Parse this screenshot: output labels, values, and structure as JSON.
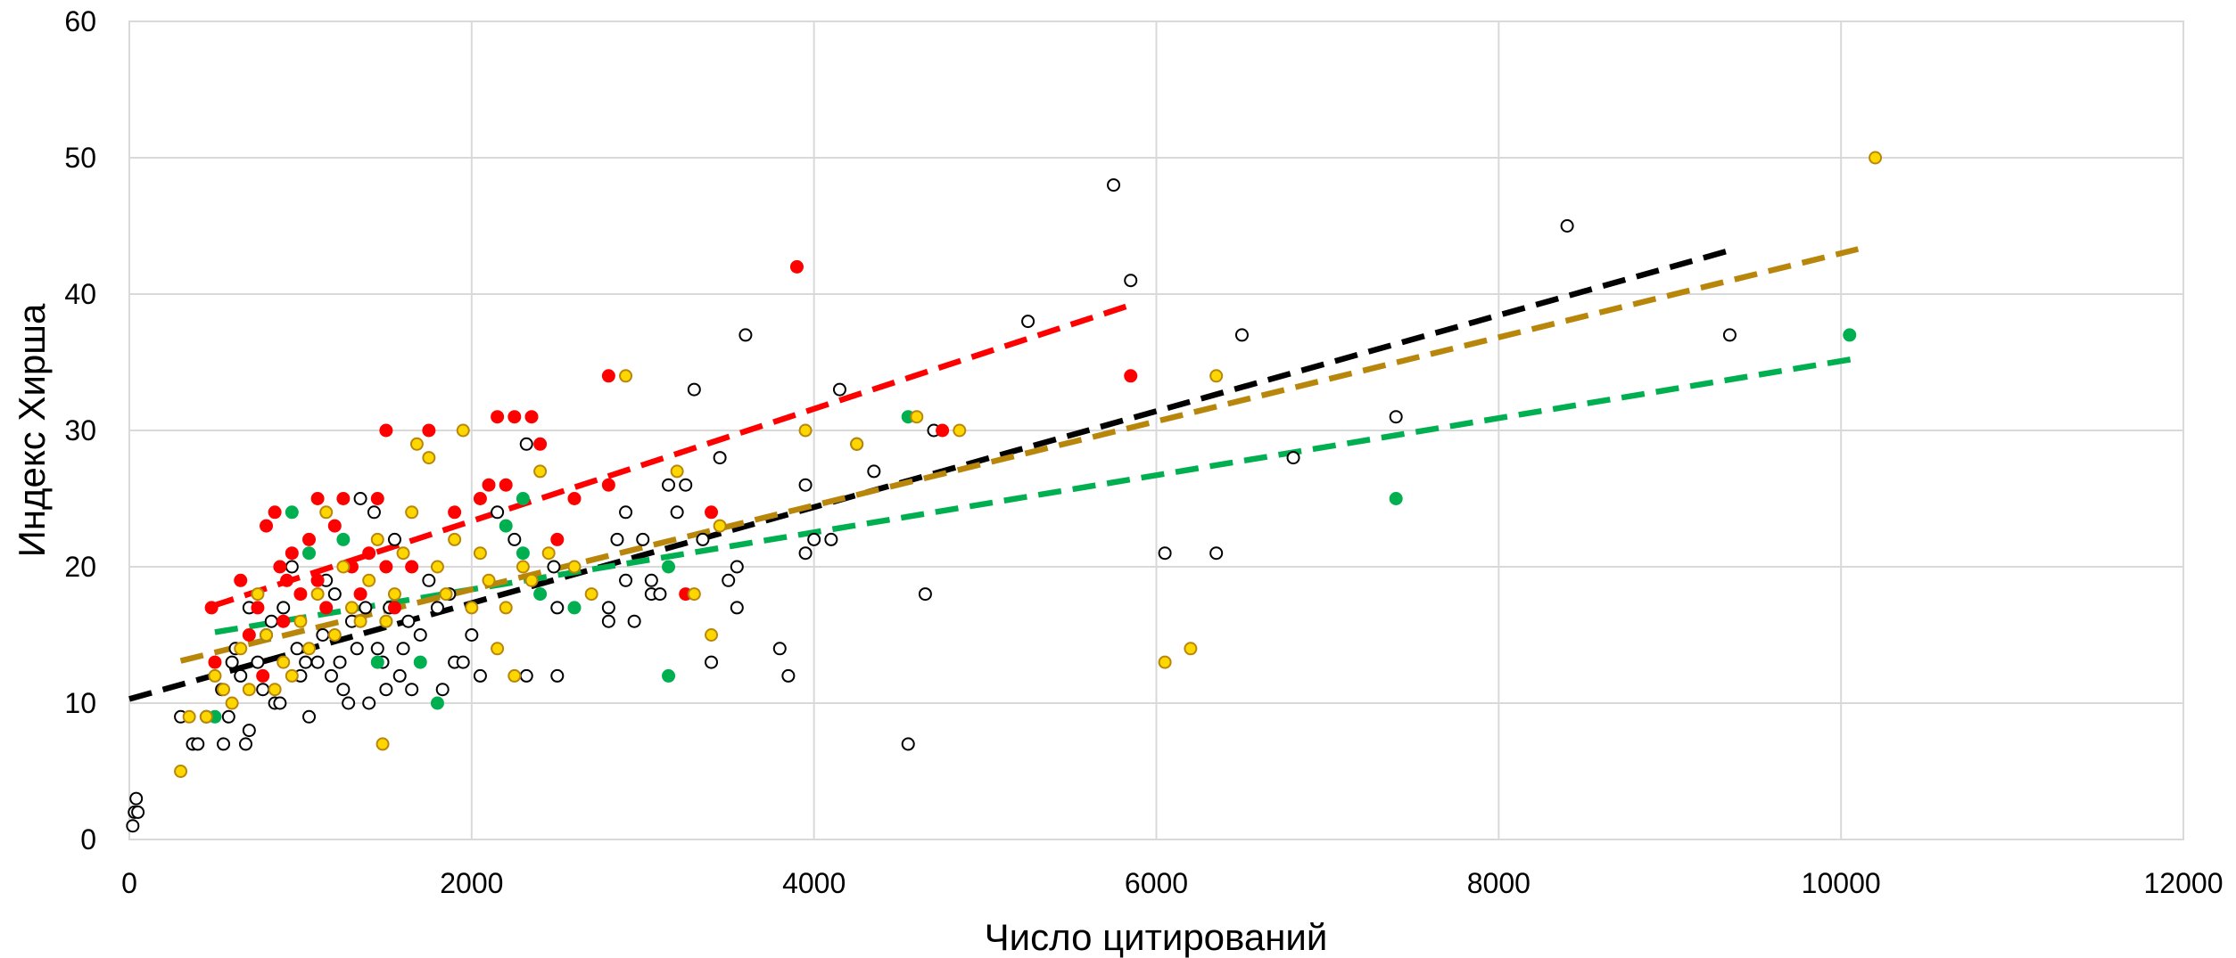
{
  "chart_data": {
    "type": "scatter",
    "title": "",
    "xlabel": "Число цитирований",
    "ylabel": "Индекс Хирша",
    "xlim": [
      0,
      12000
    ],
    "ylim": [
      0,
      60
    ],
    "xticks": [
      0,
      2000,
      4000,
      6000,
      8000,
      10000,
      12000
    ],
    "yticks": [
      0,
      10,
      20,
      30,
      40,
      50,
      60
    ],
    "xtick_labels": [
      "0",
      "2000",
      "4000",
      "6000",
      "8000",
      "10000",
      "12000"
    ],
    "ytick_labels": [
      "0",
      "10",
      "20",
      "30",
      "40",
      "50",
      "60"
    ],
    "grid": true,
    "legend": "none",
    "series": [
      {
        "color": "#ffffff",
        "stroke": "#000000",
        "points": [
          [
            20,
            1
          ],
          [
            30,
            2
          ],
          [
            50,
            2
          ],
          [
            40,
            3
          ],
          [
            300,
            9
          ],
          [
            370,
            7
          ],
          [
            400,
            7
          ],
          [
            450,
            9
          ],
          [
            540,
            11
          ],
          [
            550,
            7
          ],
          [
            580,
            9
          ],
          [
            600,
            13
          ],
          [
            620,
            14
          ],
          [
            650,
            12
          ],
          [
            680,
            7
          ],
          [
            700,
            8
          ],
          [
            700,
            17
          ],
          [
            750,
            13
          ],
          [
            780,
            11
          ],
          [
            800,
            15
          ],
          [
            830,
            16
          ],
          [
            850,
            10
          ],
          [
            880,
            10
          ],
          [
            900,
            17
          ],
          [
            950,
            20
          ],
          [
            980,
            14
          ],
          [
            1000,
            12
          ],
          [
            1030,
            13
          ],
          [
            1050,
            9
          ],
          [
            1100,
            13
          ],
          [
            1130,
            15
          ],
          [
            1150,
            19
          ],
          [
            1180,
            12
          ],
          [
            1200,
            18
          ],
          [
            1230,
            13
          ],
          [
            1250,
            11
          ],
          [
            1280,
            10
          ],
          [
            1300,
            16
          ],
          [
            1330,
            14
          ],
          [
            1350,
            25
          ],
          [
            1380,
            17
          ],
          [
            1400,
            10
          ],
          [
            1430,
            24
          ],
          [
            1450,
            14
          ],
          [
            1480,
            13
          ],
          [
            1500,
            11
          ],
          [
            1520,
            17
          ],
          [
            1550,
            22
          ],
          [
            1580,
            12
          ],
          [
            1600,
            14
          ],
          [
            1630,
            16
          ],
          [
            1650,
            11
          ],
          [
            1700,
            15
          ],
          [
            1750,
            19
          ],
          [
            1800,
            17
          ],
          [
            1830,
            11
          ],
          [
            1870,
            18
          ],
          [
            1900,
            13
          ],
          [
            1950,
            13
          ],
          [
            2000,
            15
          ],
          [
            2050,
            12
          ],
          [
            2150,
            24
          ],
          [
            2250,
            22
          ],
          [
            2320,
            29
          ],
          [
            2320,
            12
          ],
          [
            2480,
            20
          ],
          [
            2500,
            17
          ],
          [
            2500,
            12
          ],
          [
            2800,
            17
          ],
          [
            2800,
            16
          ],
          [
            2850,
            22
          ],
          [
            2900,
            19
          ],
          [
            2900,
            24
          ],
          [
            2950,
            16
          ],
          [
            3000,
            22
          ],
          [
            3050,
            18
          ],
          [
            3050,
            19
          ],
          [
            3100,
            18
          ],
          [
            3150,
            26
          ],
          [
            3200,
            24
          ],
          [
            3250,
            26
          ],
          [
            3300,
            33
          ],
          [
            3350,
            22
          ],
          [
            3400,
            13
          ],
          [
            3450,
            28
          ],
          [
            3500,
            19
          ],
          [
            3550,
            20
          ],
          [
            3550,
            17
          ],
          [
            3600,
            37
          ],
          [
            3800,
            14
          ],
          [
            3850,
            12
          ],
          [
            3950,
            26
          ],
          [
            3950,
            21
          ],
          [
            4000,
            22
          ],
          [
            4100,
            22
          ],
          [
            4150,
            33
          ],
          [
            4250,
            29
          ],
          [
            4350,
            27
          ],
          [
            4550,
            7
          ],
          [
            4650,
            18
          ],
          [
            4700,
            30
          ],
          [
            5250,
            38
          ],
          [
            5750,
            48
          ],
          [
            5850,
            41
          ],
          [
            6050,
            21
          ],
          [
            6350,
            21
          ],
          [
            6500,
            37
          ],
          [
            6800,
            28
          ],
          [
            7400,
            31
          ],
          [
            8400,
            45
          ],
          [
            9350,
            37
          ]
        ],
        "trend": [
          [
            0,
            10.3
          ],
          [
            9350,
            43.2
          ]
        ],
        "trend_color": "#000000"
      },
      {
        "color": "#ff0000",
        "stroke": "#ff0000",
        "points": [
          [
            480,
            17
          ],
          [
            500,
            13
          ],
          [
            650,
            19
          ],
          [
            700,
            15
          ],
          [
            750,
            17
          ],
          [
            780,
            12
          ],
          [
            800,
            23
          ],
          [
            850,
            24
          ],
          [
            880,
            20
          ],
          [
            900,
            16
          ],
          [
            920,
            19
          ],
          [
            950,
            21
          ],
          [
            1000,
            18
          ],
          [
            1050,
            22
          ],
          [
            1100,
            19
          ],
          [
            1100,
            25
          ],
          [
            1150,
            17
          ],
          [
            1200,
            23
          ],
          [
            1250,
            25
          ],
          [
            1300,
            20
          ],
          [
            1350,
            18
          ],
          [
            1400,
            21
          ],
          [
            1450,
            25
          ],
          [
            1500,
            20
          ],
          [
            1500,
            30
          ],
          [
            1550,
            17
          ],
          [
            1650,
            20
          ],
          [
            1750,
            30
          ],
          [
            1900,
            24
          ],
          [
            2050,
            25
          ],
          [
            2100,
            26
          ],
          [
            2150,
            31
          ],
          [
            2200,
            26
          ],
          [
            2250,
            31
          ],
          [
            2350,
            31
          ],
          [
            2400,
            29
          ],
          [
            2500,
            22
          ],
          [
            2600,
            25
          ],
          [
            2800,
            34
          ],
          [
            2800,
            26
          ],
          [
            3250,
            18
          ],
          [
            3400,
            24
          ],
          [
            3900,
            42
          ],
          [
            4750,
            30
          ],
          [
            5850,
            34
          ]
        ],
        "trend": [
          [
            480,
            17.1
          ],
          [
            5850,
            39.2
          ]
        ],
        "trend_color": "#ff0000"
      },
      {
        "color": "#00b050",
        "stroke": "#00b050",
        "points": [
          [
            500,
            9
          ],
          [
            800,
            15
          ],
          [
            950,
            24
          ],
          [
            1050,
            21
          ],
          [
            1250,
            22
          ],
          [
            1450,
            13
          ],
          [
            1500,
            16
          ],
          [
            1700,
            13
          ],
          [
            1800,
            10
          ],
          [
            2200,
            23
          ],
          [
            2300,
            21
          ],
          [
            2300,
            25
          ],
          [
            2400,
            18
          ],
          [
            2600,
            17
          ],
          [
            3150,
            12
          ],
          [
            3150,
            20
          ],
          [
            4550,
            31
          ],
          [
            7400,
            25
          ],
          [
            10050,
            37
          ]
        ],
        "trend": [
          [
            500,
            15.2
          ],
          [
            10100,
            35.3
          ]
        ],
        "trend_color": "#00b050"
      },
      {
        "color": "#ffd700",
        "stroke": "#b8860b",
        "points": [
          [
            300,
            5
          ],
          [
            350,
            9
          ],
          [
            450,
            9
          ],
          [
            500,
            12
          ],
          [
            550,
            11
          ],
          [
            600,
            10
          ],
          [
            650,
            14
          ],
          [
            700,
            11
          ],
          [
            750,
            18
          ],
          [
            800,
            15
          ],
          [
            850,
            11
          ],
          [
            900,
            13
          ],
          [
            950,
            12
          ],
          [
            1000,
            16
          ],
          [
            1050,
            14
          ],
          [
            1100,
            18
          ],
          [
            1150,
            24
          ],
          [
            1200,
            15
          ],
          [
            1250,
            20
          ],
          [
            1300,
            17
          ],
          [
            1350,
            16
          ],
          [
            1400,
            19
          ],
          [
            1450,
            22
          ],
          [
            1480,
            7
          ],
          [
            1500,
            16
          ],
          [
            1550,
            18
          ],
          [
            1600,
            21
          ],
          [
            1650,
            24
          ],
          [
            1680,
            29
          ],
          [
            1750,
            28
          ],
          [
            1800,
            20
          ],
          [
            1850,
            18
          ],
          [
            1900,
            22
          ],
          [
            1950,
            30
          ],
          [
            2000,
            17
          ],
          [
            2050,
            21
          ],
          [
            2100,
            19
          ],
          [
            2150,
            14
          ],
          [
            2200,
            17
          ],
          [
            2250,
            12
          ],
          [
            2300,
            20
          ],
          [
            2350,
            19
          ],
          [
            2400,
            27
          ],
          [
            2450,
            21
          ],
          [
            2600,
            20
          ],
          [
            2700,
            18
          ],
          [
            2900,
            34
          ],
          [
            3200,
            27
          ],
          [
            3300,
            18
          ],
          [
            3400,
            15
          ],
          [
            3450,
            23
          ],
          [
            3950,
            30
          ],
          [
            4250,
            29
          ],
          [
            4600,
            31
          ],
          [
            4850,
            30
          ],
          [
            6050,
            13
          ],
          [
            6200,
            14
          ],
          [
            6350,
            34
          ],
          [
            10200,
            50
          ]
        ],
        "trend": [
          [
            300,
            13.1
          ],
          [
            10100,
            43.3
          ]
        ],
        "trend_color": "#b8860b"
      }
    ]
  }
}
